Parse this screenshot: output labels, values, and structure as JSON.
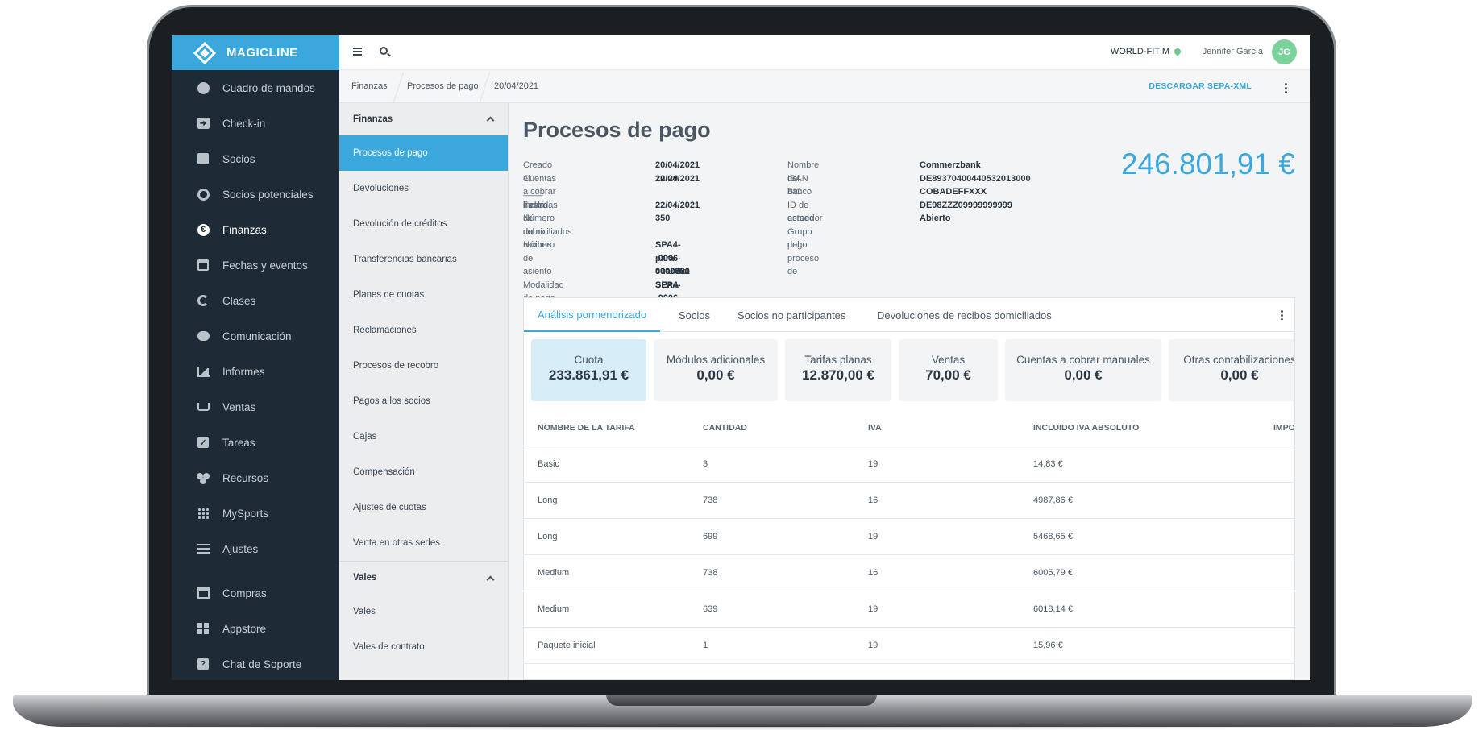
{
  "brand": {
    "name": "MAGICLINE"
  },
  "sidebar": {
    "items": [
      {
        "label": "Cuadro de mandos",
        "icon": "dashboard-icon"
      },
      {
        "label": "Check-in",
        "icon": "checkin-icon"
      },
      {
        "label": "Socios",
        "icon": "members-icon"
      },
      {
        "label": "Socios potenciales",
        "icon": "leads-icon"
      },
      {
        "label": "Finanzas",
        "icon": "euro-icon"
      },
      {
        "label": "Fechas y eventos",
        "icon": "calendar-icon"
      },
      {
        "label": "Clases",
        "icon": "stopwatch-icon"
      },
      {
        "label": "Comunicación",
        "icon": "chat-icon"
      },
      {
        "label": "Informes",
        "icon": "chart-icon"
      },
      {
        "label": "Ventas",
        "icon": "cart-icon"
      },
      {
        "label": "Tareas",
        "icon": "checkbox-icon"
      },
      {
        "label": "Recursos",
        "icon": "people-icon"
      },
      {
        "label": "MySports",
        "icon": "dots-icon"
      },
      {
        "label": "Ajustes",
        "icon": "sliders-icon"
      },
      {
        "label": "Compras",
        "icon": "store-icon"
      },
      {
        "label": "Appstore",
        "icon": "grid-icon"
      },
      {
        "label": "Chat de Soporte",
        "icon": "help-icon"
      }
    ]
  },
  "topbar": {
    "location": "WORLD-FIT M",
    "user_name": "Jennifer García",
    "avatar_initials": "JG"
  },
  "breadcrumb": {
    "items": [
      "Finanzas",
      "Procesos de pago",
      "20/04/2021"
    ],
    "action": "DESCARGAR SEPA-XML"
  },
  "subnav": {
    "section1": {
      "title": "Finanzas",
      "items": [
        "Procesos de pago",
        "Devoluciones",
        "Devolución de créditos",
        "Transferencias bancarias",
        "Planes de cuotas",
        "Reclamaciones",
        "Procesos de recobro",
        "Pagos a los socios",
        "Cajas",
        "Compensación",
        "Ajustes de cuotas",
        "Venta en otras sedes"
      ]
    },
    "section2": {
      "title": "Vales",
      "items": [
        "Vales",
        "Vales de contrato"
      ]
    }
  },
  "page": {
    "title": "Procesos de pago",
    "total": "246.801,91 €",
    "info_left": {
      "labels": [
        "Creado el",
        "Cuentas a cobrar hasta",
        "____ incluidas",
        "Fecha de cobro",
        "Número de recibos",
        "domiciliados",
        "Número de asiento",
        "Modalidad de pago"
      ],
      "values": [
        "20/04/2021 12:29",
        "20/04/2021",
        "22/04/2021",
        "350",
        "SPA4--0006-0000001",
        "para cuando SPA4--0006-",
        "0000350",
        "SEPA"
      ]
    },
    "info_right": {
      "labels": [
        "Nombre del banco",
        "IBAN",
        "BIC",
        "ID de acreedor",
        "estado",
        "Grupo del proceso de",
        "pago"
      ],
      "values": [
        "Commerzbank",
        "DE89370400440532013000",
        "COBADEFFXXX",
        "DE98ZZZ09999999999",
        "Abierto"
      ]
    }
  },
  "tabs": [
    "Análisis pormenorizado",
    "Socios",
    "Socios no participantes",
    "Devoluciones de recibos domiciliados"
  ],
  "tiles": [
    {
      "label": "Cuota",
      "value": "233.861,91 €"
    },
    {
      "label": "Módulos adicionales",
      "value": "0,00 €"
    },
    {
      "label": "Tarifas planas",
      "value": "12.870,00 €"
    },
    {
      "label": "Ventas",
      "value": "70,00 €"
    },
    {
      "label": "Cuentas a cobrar manuales",
      "value": "0,00 €"
    },
    {
      "label": "Otras contabilizaciones",
      "value": "0,00 €"
    }
  ],
  "table": {
    "columns": [
      "NOMBRE DE LA TARIFA",
      "CANTIDAD",
      "IVA",
      "INCLUIDO IVA ABSOLUTO",
      "IMPORTE"
    ],
    "rows": [
      [
        "Basic",
        "3",
        "19",
        "14,83 €"
      ],
      [
        "Long",
        "738",
        "16",
        "4987,86 €"
      ],
      [
        "Long",
        "699",
        "19",
        "5468,65 €"
      ],
      [
        "Medium",
        "738",
        "16",
        "6005,79 €"
      ],
      [
        "Medium",
        "639",
        "19",
        "6018,14 €"
      ],
      [
        "Paquete inicial",
        "1",
        "19",
        "15,96 €"
      ]
    ]
  },
  "colors": {
    "accent": "#3aa8dd",
    "sidebar_bg": "#1e2a35",
    "avatar_bg": "#7dd19b"
  }
}
